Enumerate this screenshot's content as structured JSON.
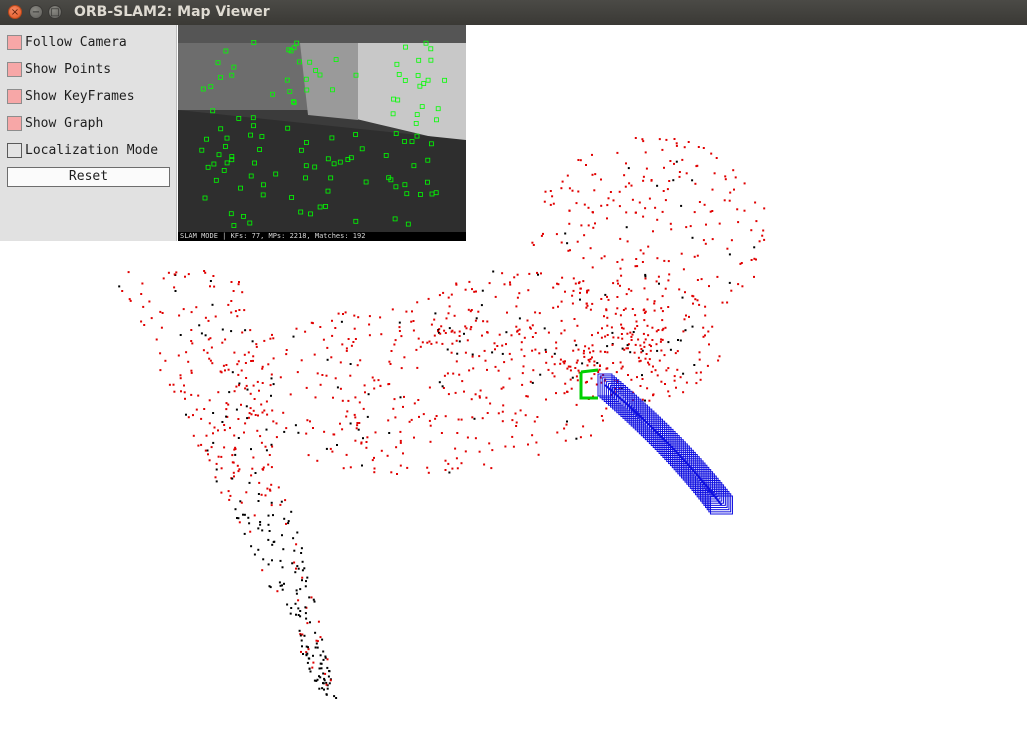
{
  "window": {
    "title": "ORB-SLAM2: Map Viewer",
    "close_glyph": "×",
    "minimize_glyph": "−",
    "maximize_glyph": "□"
  },
  "panel": {
    "options": [
      {
        "label": "Follow Camera",
        "checked": true
      },
      {
        "label": "Show Points",
        "checked": true
      },
      {
        "label": "Show KeyFrames",
        "checked": true
      },
      {
        "label": "Show Graph",
        "checked": true
      },
      {
        "label": "Localization Mode",
        "checked": false
      }
    ],
    "reset_label": "Reset"
  },
  "camera_view": {
    "status_text": "SLAM MODE |  KFs: 77, MPs: 2218, Matches: 192"
  },
  "colors": {
    "map_point": "#e00000",
    "reference_point": "#000000",
    "keyframe": "#1010e0",
    "current_camera": "#00d000",
    "feature": "#00ff00"
  }
}
